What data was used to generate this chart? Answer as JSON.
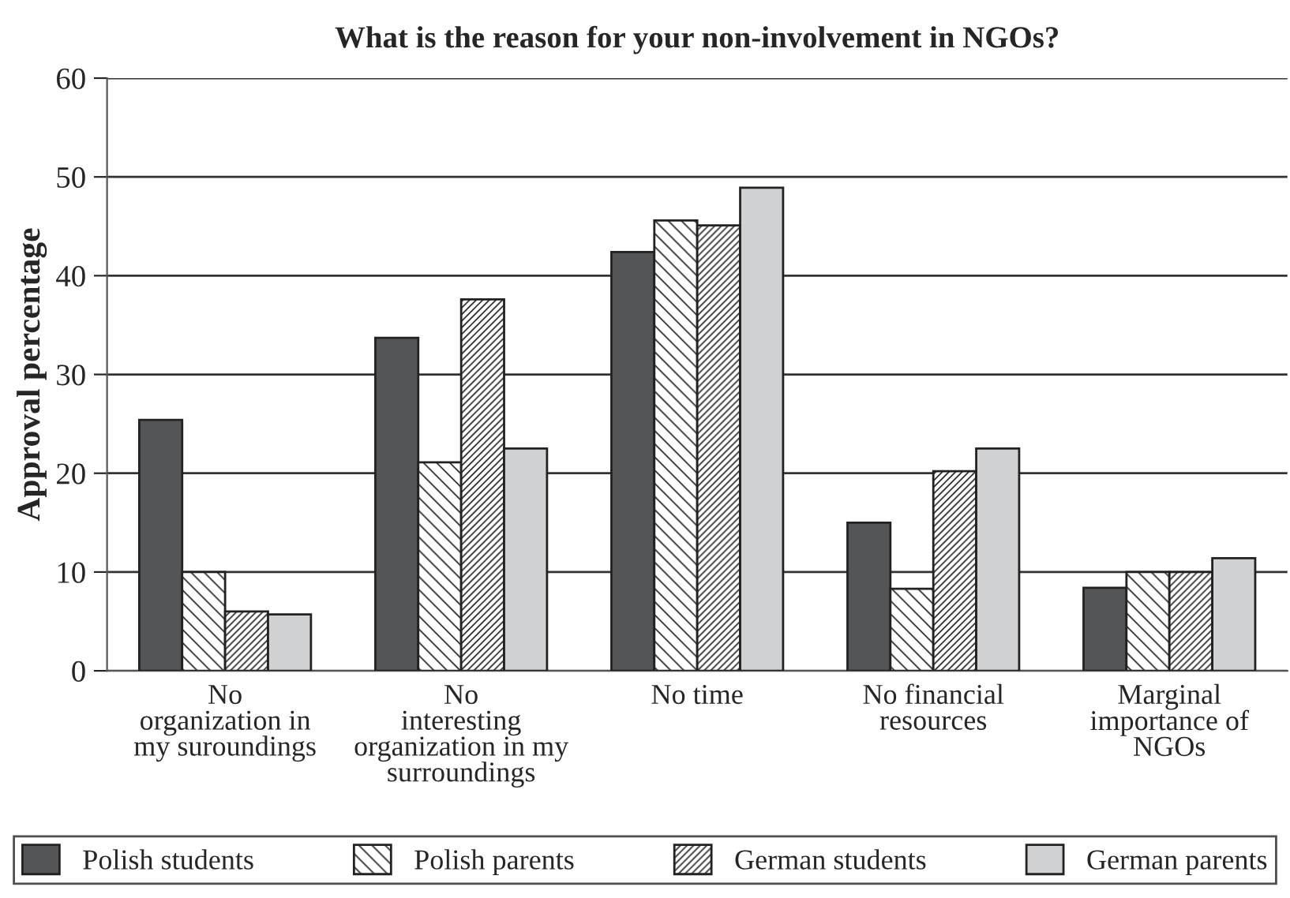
{
  "chart_data": {
    "type": "bar",
    "title": "What is the reason for your non-involvement in NGOs?",
    "ylabel": "Approval percentage",
    "categories": [
      "No\norganization in\nmy suroundings",
      "No\ninteresting\norganization in my\nsurroundings",
      "No time",
      "No financial\nresources",
      "Marginal\nimportance of\nNGOs"
    ],
    "series": [
      {
        "name": "Polish students",
        "color": "#545556",
        "values": [
          25.4,
          33.7,
          42.4,
          15.0,
          8.4
        ]
      },
      {
        "name": "Polish parents",
        "color": "#222222",
        "values": [
          10.0,
          21.1,
          45.6,
          8.3,
          10.0
        ]
      },
      {
        "name": "German students",
        "color": "#222222",
        "values": [
          6.0,
          37.6,
          45.1,
          20.2,
          10.0
        ]
      },
      {
        "name": "German parents",
        "color": "#d0d1d2",
        "values": [
          5.7,
          22.5,
          48.9,
          22.5,
          11.4
        ]
      }
    ],
    "ylim": [
      0,
      60
    ],
    "yticks": [
      0,
      10,
      20,
      30,
      40,
      50,
      60
    ],
    "grid": "y",
    "legend": "bottom"
  }
}
